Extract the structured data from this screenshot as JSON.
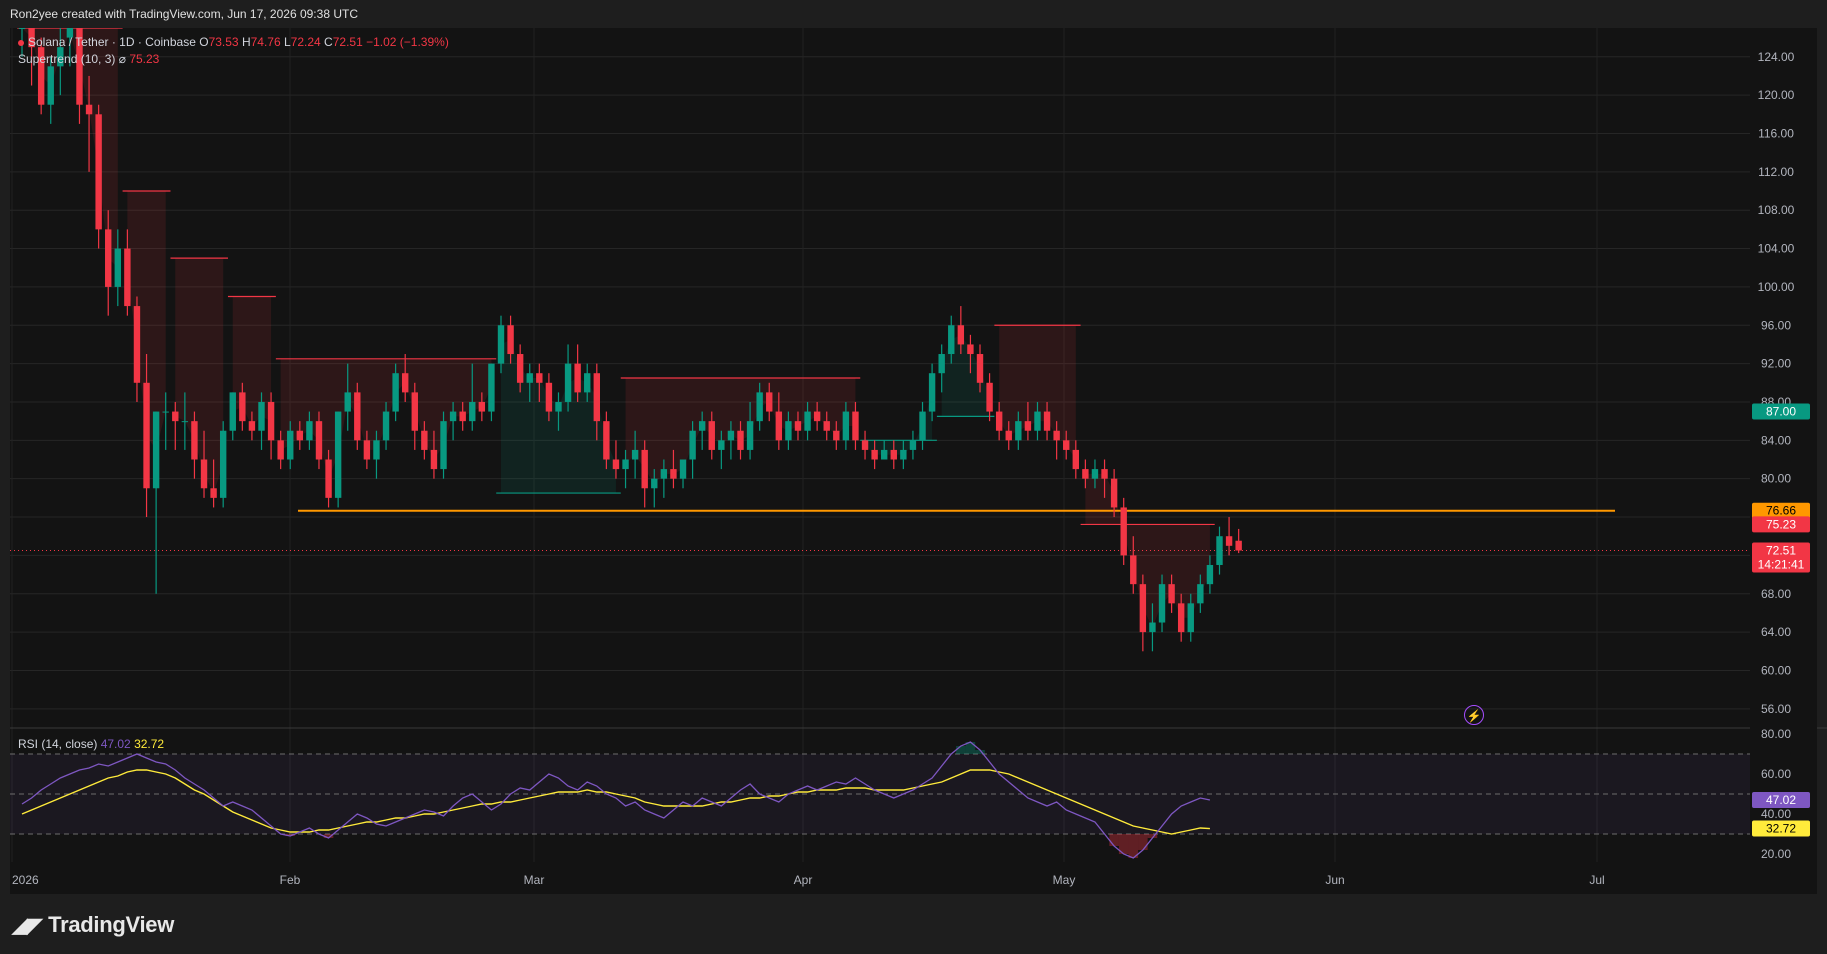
{
  "header": {
    "credit": "Ron2yee created with TradingView.com, Jun 17, 2026 09:38 UTC"
  },
  "legend": {
    "symbol": "Solana / Tether · 1D · Coinbase",
    "o_label": "O",
    "o_value": "73.53",
    "h_label": "H",
    "h_value": "74.76",
    "l_label": "L",
    "l_value": "72.24",
    "c_label": "C",
    "c_value": "72.51",
    "change": "−1.02 (−1.39%)",
    "indicator": "Supertrend (10, 3)",
    "indicator_symbol": "⌀",
    "indicator_value": "75.23"
  },
  "rsi_legend": {
    "name": "RSI (14, close)",
    "rsi_value": "47.02",
    "ma_value": "32.72"
  },
  "footer": {
    "logo_text": "TradingView",
    "logo_mark": "𝟭𝟳"
  },
  "colors": {
    "up": "#089981",
    "down": "#f23645",
    "support": "#ff9800",
    "rsi": "#7e57c2",
    "rsi_ma": "#ffeb3b",
    "background": "#131313"
  },
  "chart_data": [
    {
      "type": "candlestick",
      "title": "Solana / Tether · 1D · Coinbase",
      "y_axis_ticks": [
        "124.00",
        "120.00",
        "116.00",
        "112.00",
        "108.00",
        "104.00",
        "100.00",
        "96.00",
        "92.00",
        "88.00",
        "84.00",
        "80.00",
        "76.00",
        "72.00",
        "68.00",
        "64.00",
        "60.00",
        "56.00"
      ],
      "x_axis_ticks": [
        "2026",
        "Feb",
        "Mar",
        "Apr",
        "May",
        "Jun",
        "Jul"
      ],
      "ylim": [
        54,
        127
      ],
      "price_badges": [
        {
          "label": "87.00",
          "color": "#089981"
        },
        {
          "label": "76.66",
          "color": "#ff9800"
        },
        {
          "label": "75.23",
          "color": "#f23645"
        },
        {
          "label": "72.51",
          "sub": "14:21:41",
          "color": "#f23645"
        }
      ],
      "support_level": 76.66,
      "last_close": 72.51,
      "candles": [
        [
          127,
          129,
          124,
          127
        ],
        [
          127,
          129,
          121,
          125
        ],
        [
          125,
          126,
          118,
          119
        ],
        [
          119,
          124,
          117,
          123
        ],
        [
          123,
          127,
          120,
          125
        ],
        [
          126,
          130,
          123,
          127
        ],
        [
          127,
          128,
          117,
          119
        ],
        [
          119,
          122,
          112,
          118
        ],
        [
          118,
          119,
          104,
          106
        ],
        [
          106,
          108,
          97,
          100
        ],
        [
          100,
          106,
          98,
          104
        ],
        [
          104,
          106,
          97,
          98
        ],
        [
          98,
          99,
          88,
          90
        ],
        [
          90,
          93,
          76,
          79
        ],
        [
          79,
          87,
          68,
          87
        ],
        [
          87,
          89,
          83,
          87
        ],
        [
          87,
          88,
          83,
          86
        ],
        [
          86,
          89,
          83,
          86
        ],
        [
          86,
          87,
          80,
          82
        ],
        [
          82,
          85,
          78,
          79
        ],
        [
          79,
          82,
          77,
          78
        ],
        [
          78,
          86,
          77,
          85
        ],
        [
          85,
          89,
          84,
          89
        ],
        [
          89,
          90,
          85,
          86
        ],
        [
          86,
          87,
          84,
          85
        ],
        [
          85,
          89,
          83,
          88
        ],
        [
          88,
          89,
          82,
          84
        ],
        [
          84,
          85,
          81,
          82
        ],
        [
          82,
          86,
          81,
          85
        ],
        [
          85,
          86,
          83,
          84
        ],
        [
          84,
          87,
          83,
          86
        ],
        [
          86,
          87,
          81,
          82
        ],
        [
          82,
          83,
          77,
          78
        ],
        [
          78,
          87,
          77,
          87
        ],
        [
          87,
          92,
          85,
          89
        ],
        [
          89,
          90,
          83,
          84
        ],
        [
          84,
          85,
          81,
          82
        ],
        [
          82,
          85,
          80,
          84
        ],
        [
          84,
          88,
          83,
          87
        ],
        [
          87,
          92,
          86,
          91
        ],
        [
          91,
          93,
          88,
          89
        ],
        [
          89,
          90,
          83,
          85
        ],
        [
          85,
          86,
          82,
          83
        ],
        [
          83,
          85,
          80,
          81
        ],
        [
          81,
          87,
          80,
          86
        ],
        [
          86,
          88,
          84,
          87
        ],
        [
          87,
          88,
          85,
          86
        ],
        [
          86,
          92,
          85,
          88
        ],
        [
          88,
          89,
          86,
          87
        ],
        [
          87,
          92,
          86,
          92
        ],
        [
          92,
          97,
          91,
          96
        ],
        [
          96,
          97,
          92,
          93
        ],
        [
          93,
          94,
          89,
          90
        ],
        [
          90,
          92,
          88,
          91
        ],
        [
          91,
          92,
          88,
          90
        ],
        [
          90,
          91,
          86,
          87
        ],
        [
          87,
          89,
          85,
          88
        ],
        [
          88,
          94,
          87,
          92
        ],
        [
          92,
          94,
          88,
          89
        ],
        [
          89,
          92,
          88,
          91
        ],
        [
          91,
          92,
          84,
          86
        ],
        [
          86,
          87,
          81,
          82
        ],
        [
          82,
          84,
          80,
          81
        ],
        [
          81,
          83,
          79,
          82
        ],
        [
          82,
          85,
          80,
          83
        ],
        [
          83,
          84,
          77,
          79
        ],
        [
          79,
          81,
          77,
          80
        ],
        [
          80,
          82,
          78,
          81
        ],
        [
          81,
          83,
          79,
          80
        ],
        [
          80,
          82,
          79,
          82
        ],
        [
          82,
          86,
          80,
          85
        ],
        [
          85,
          87,
          83,
          86
        ],
        [
          86,
          87,
          82,
          83
        ],
        [
          83,
          85,
          81,
          84
        ],
        [
          84,
          86,
          82,
          85
        ],
        [
          85,
          86,
          82,
          83
        ],
        [
          83,
          88,
          82,
          86
        ],
        [
          86,
          90,
          85,
          89
        ],
        [
          89,
          90,
          86,
          87
        ],
        [
          87,
          89,
          83,
          84
        ],
        [
          84,
          87,
          83,
          86
        ],
        [
          86,
          87,
          84,
          85
        ],
        [
          85,
          88,
          84,
          87
        ],
        [
          87,
          88,
          85,
          86
        ],
        [
          86,
          87,
          84,
          85
        ],
        [
          85,
          86,
          83,
          84
        ],
        [
          84,
          88,
          83,
          87
        ],
        [
          87,
          88,
          83,
          84
        ],
        [
          84,
          85,
          82,
          83
        ],
        [
          83,
          84,
          81,
          82
        ],
        [
          82,
          84,
          82,
          83
        ],
        [
          83,
          84,
          81,
          82
        ],
        [
          82,
          84,
          81,
          83
        ],
        [
          83,
          85,
          82,
          84
        ],
        [
          84,
          88,
          83,
          87
        ],
        [
          87,
          92,
          86,
          91
        ],
        [
          91,
          94,
          89,
          93
        ],
        [
          93,
          97,
          92,
          96
        ],
        [
          96,
          98,
          93,
          94
        ],
        [
          94,
          95,
          91,
          93
        ],
        [
          93,
          94,
          89,
          90
        ],
        [
          90,
          91,
          86,
          87
        ],
        [
          87,
          88,
          84,
          85
        ],
        [
          85,
          86,
          83,
          84
        ],
        [
          84,
          87,
          83,
          86
        ],
        [
          86,
          88,
          84,
          85
        ],
        [
          85,
          88,
          84,
          87
        ],
        [
          87,
          88,
          84,
          85
        ],
        [
          85,
          86,
          82,
          84
        ],
        [
          84,
          85,
          82,
          83
        ],
        [
          83,
          84,
          80,
          81
        ],
        [
          81,
          82,
          79,
          80
        ],
        [
          80,
          82,
          79,
          81
        ],
        [
          81,
          82,
          78,
          80
        ],
        [
          80,
          81,
          76,
          77
        ],
        [
          77,
          78,
          71,
          72
        ],
        [
          72,
          74,
          68,
          69
        ],
        [
          69,
          70,
          62,
          64
        ],
        [
          64,
          67,
          62,
          65
        ],
        [
          65,
          70,
          64,
          69
        ],
        [
          69,
          70,
          66,
          67
        ],
        [
          67,
          68,
          63,
          64
        ],
        [
          64,
          68,
          63,
          67
        ],
        [
          67,
          70,
          66,
          69
        ],
        [
          69,
          72,
          68,
          71
        ],
        [
          71,
          75,
          70,
          74
        ],
        [
          74,
          76,
          72,
          73
        ],
        [
          73.53,
          74.76,
          72.24,
          72.51
        ]
      ],
      "supertrend": [
        {
          "dir": "down",
          "from": 0,
          "to": 10,
          "value": 127
        },
        {
          "dir": "down",
          "from": 11,
          "to": 15,
          "value": 110
        },
        {
          "dir": "down",
          "from": 16,
          "to": 21,
          "value": 103
        },
        {
          "dir": "down",
          "from": 22,
          "to": 26,
          "value": 99
        },
        {
          "dir": "down",
          "from": 27,
          "to": 49,
          "value": 92.5
        },
        {
          "dir": "up",
          "from": 50,
          "to": 62,
          "value": 78.5
        },
        {
          "dir": "down",
          "from": 63,
          "to": 87,
          "value": 90.5
        },
        {
          "dir": "up",
          "from": 88,
          "to": 95,
          "value": 84
        },
        {
          "dir": "up",
          "from": 96,
          "to": 101,
          "value": 86.5
        },
        {
          "dir": "down",
          "from": 102,
          "to": 110,
          "value": 96
        },
        {
          "dir": "down",
          "from": 111,
          "to": 124,
          "value": 75.23
        }
      ]
    },
    {
      "type": "line",
      "title": "RSI (14, close)",
      "y_axis_ticks": [
        "80.00",
        "60.00",
        "40.00",
        "20.00"
      ],
      "ylim": [
        16,
        82
      ],
      "bands": [
        70,
        50,
        30
      ],
      "badges": [
        {
          "label": "47.02",
          "color": "#7e57c2"
        },
        {
          "label": "32.72",
          "color": "#ffeb3b"
        }
      ],
      "series": [
        {
          "values": [
            45,
            48,
            52,
            55,
            58,
            60,
            62,
            63,
            65,
            64,
            66,
            68,
            70,
            68,
            66,
            65,
            62,
            58,
            55,
            52,
            48,
            44,
            46,
            44,
            42,
            38,
            34,
            30,
            29,
            31,
            33,
            30,
            28,
            32,
            36,
            40,
            38,
            35,
            34,
            36,
            38,
            40,
            42,
            41,
            39,
            44,
            48,
            50,
            46,
            42,
            45,
            50,
            53,
            52,
            56,
            60,
            58,
            54,
            52,
            56,
            54,
            50,
            48,
            44,
            46,
            42,
            40,
            38,
            42,
            46,
            44,
            48,
            46,
            44,
            48,
            52,
            55,
            50,
            48,
            46,
            50,
            52,
            54,
            52,
            54,
            56,
            55,
            58,
            55,
            52,
            50,
            48,
            50,
            52,
            55,
            58,
            64,
            70,
            74,
            76,
            72,
            66,
            60,
            56,
            52,
            48,
            46,
            44,
            46,
            42,
            40,
            38,
            36,
            30,
            24,
            20,
            18,
            22,
            28,
            34,
            40,
            44,
            46,
            48,
            47.02
          ]
        },
        {
          "values": [
            40,
            42,
            44,
            46,
            48,
            50,
            52,
            54,
            56,
            58,
            59,
            61,
            62,
            62,
            61,
            60,
            58,
            55,
            52,
            50,
            47,
            44,
            41,
            39,
            37,
            35,
            33,
            32,
            31,
            31,
            31,
            32,
            32,
            33,
            34,
            35,
            36,
            36,
            37,
            38,
            38,
            39,
            40,
            40,
            41,
            42,
            43,
            44,
            45,
            45,
            46,
            46,
            47,
            48,
            49,
            50,
            51,
            51,
            51,
            52,
            51,
            51,
            50,
            49,
            48,
            46,
            45,
            44,
            44,
            44,
            44,
            44,
            45,
            46,
            46,
            47,
            48,
            48,
            49,
            49,
            50,
            51,
            51,
            52,
            52,
            52,
            53,
            53,
            53,
            52,
            52,
            52,
            52,
            53,
            54,
            55,
            56,
            58,
            60,
            62,
            62,
            62,
            61,
            60,
            58,
            56,
            54,
            52,
            50,
            48,
            46,
            44,
            42,
            40,
            38,
            36,
            34,
            33,
            32,
            31,
            30,
            31,
            32,
            33,
            32.72
          ]
        }
      ]
    }
  ]
}
